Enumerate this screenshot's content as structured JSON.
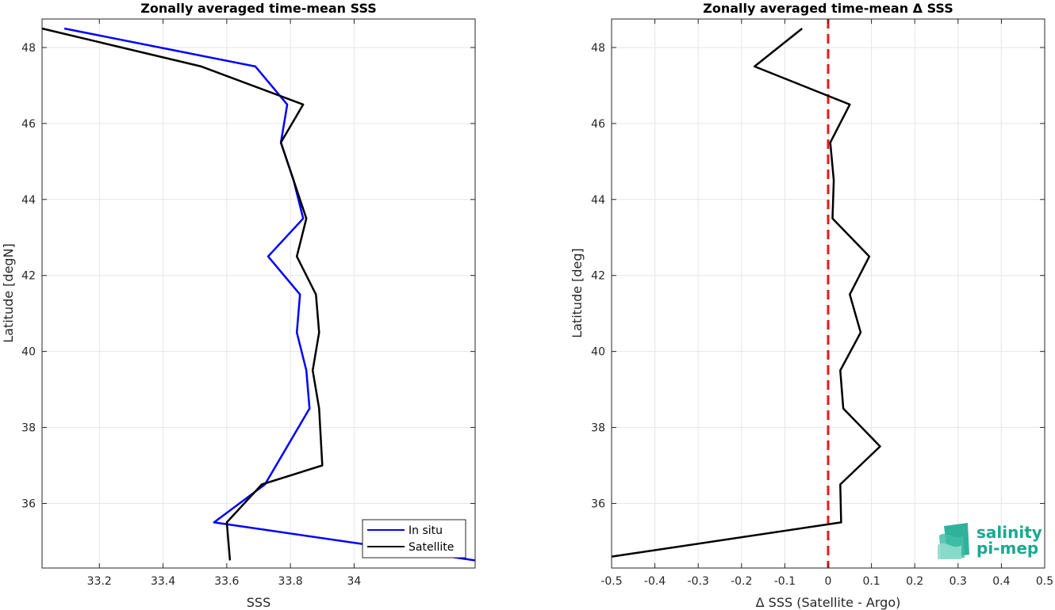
{
  "chart_data": [
    {
      "type": "line",
      "title": "Zonally averaged time-mean SSS",
      "xlabel": "SSS",
      "ylabel": "Latitude [degN]",
      "xlim": [
        33.02,
        34.38
      ],
      "ylim": [
        34.3,
        48.75
      ],
      "xticks": [
        33.2,
        33.4,
        33.6,
        33.8,
        34
      ],
      "xtick_labels": [
        "33.2",
        "33.4",
        "33.6",
        "33.8",
        "34"
      ],
      "yticks": [
        36,
        38,
        40,
        42,
        44,
        46,
        48
      ],
      "ytick_labels": [
        "36",
        "38",
        "40",
        "42",
        "44",
        "46",
        "48"
      ],
      "grid": true,
      "legend_position": "bottom-right",
      "series": [
        {
          "name": "In situ",
          "color": "#0000ff",
          "x": [
            33.09,
            33.69,
            33.79,
            33.77,
            33.81,
            33.84,
            33.73,
            33.83,
            33.82,
            33.85,
            33.86,
            33.72,
            33.56,
            34.38
          ],
          "y": [
            48.5,
            47.5,
            46.5,
            45.5,
            44.5,
            43.5,
            42.5,
            41.5,
            40.5,
            39.5,
            38.5,
            36.5,
            35.5,
            34.5
          ]
        },
        {
          "name": "Satellite",
          "color": "#000000",
          "x": [
            33.02,
            33.52,
            33.84,
            33.77,
            33.81,
            33.85,
            33.82,
            33.88,
            33.89,
            33.87,
            33.89,
            33.9,
            33.71,
            33.6,
            33.61
          ],
          "y": [
            48.5,
            47.5,
            46.5,
            45.5,
            44.5,
            43.5,
            42.5,
            41.5,
            40.5,
            39.5,
            38.5,
            37.0,
            36.5,
            35.5,
            34.5
          ]
        }
      ]
    },
    {
      "type": "line",
      "title": "Zonally averaged time-mean Δ SSS",
      "xlabel": "Δ SSS (Satellite - Argo)",
      "ylabel": "Latitude [deg]",
      "xlim": [
        -0.5,
        0.5
      ],
      "ylim": [
        34.3,
        48.75
      ],
      "xticks": [
        -0.5,
        -0.4,
        -0.3,
        -0.2,
        -0.1,
        0,
        0.1,
        0.2,
        0.3,
        0.4,
        0.5
      ],
      "xtick_labels": [
        "-0.5",
        "-0.4",
        "-0.3",
        "-0.2",
        "-0.1",
        "0",
        "0.1",
        "0.2",
        "0.3",
        "0.4",
        "0.5"
      ],
      "yticks": [
        36,
        38,
        40,
        42,
        44,
        46,
        48
      ],
      "ytick_labels": [
        "36",
        "38",
        "40",
        "42",
        "44",
        "46",
        "48"
      ],
      "grid": true,
      "reference_line": {
        "x": 0,
        "color": "#e41a1c",
        "style": "dashed"
      },
      "series": [
        {
          "color": "#000000",
          "x": [
            -0.06,
            -0.17,
            0.05,
            0.005,
            0.013,
            0.01,
            0.095,
            0.05,
            0.075,
            0.028,
            0.035,
            0.12,
            0.028,
            0.03,
            -0.5
          ],
          "y": [
            48.5,
            47.5,
            46.5,
            45.5,
            44.5,
            43.5,
            42.5,
            41.5,
            40.5,
            39.5,
            38.5,
            37.5,
            36.5,
            35.5,
            34.6
          ]
        }
      ]
    }
  ],
  "logo": {
    "line1": "salinity",
    "line2": "pi-mep",
    "color": "#1aa891"
  }
}
